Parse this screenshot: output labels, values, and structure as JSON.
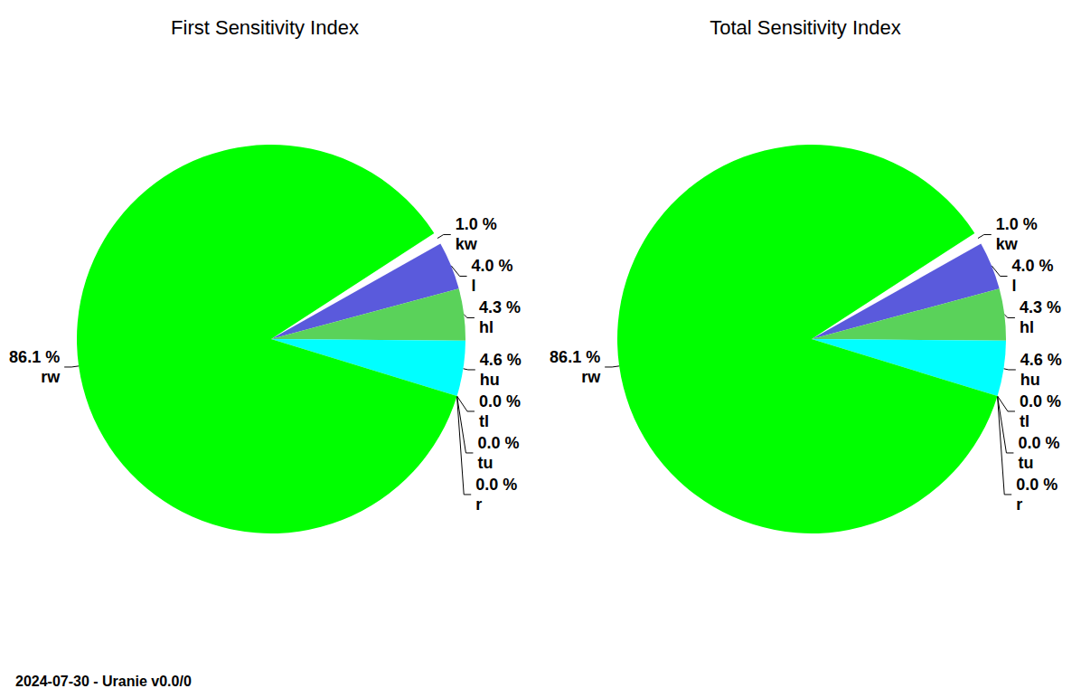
{
  "chart_data": [
    {
      "type": "pie",
      "title": "First Sensitivity Index",
      "categories": [
        "kw",
        "l",
        "hl",
        "hu",
        "tl",
        "tu",
        "r",
        "rw"
      ],
      "values": [
        1.0,
        4.0,
        4.3,
        4.6,
        0.0,
        0.0,
        0.0,
        86.1
      ],
      "value_labels": [
        "1.0 %",
        "4.0 %",
        "4.3 %",
        "4.6 %",
        "0.0 %",
        "0.0 %",
        "0.0 %",
        "86.1 %"
      ],
      "colors": [
        "#ffffff",
        "#5a5adc",
        "#5ad25a",
        "#00ffff",
        "#ffff00",
        "#ff00ff",
        "#ff0000",
        "#00ff00"
      ],
      "data_labels": true
    },
    {
      "type": "pie",
      "title": "Total Sensitivity Index",
      "categories": [
        "kw",
        "l",
        "hl",
        "hu",
        "tl",
        "tu",
        "r",
        "rw"
      ],
      "values": [
        1.0,
        4.0,
        4.3,
        4.6,
        0.0,
        0.0,
        0.0,
        86.1
      ],
      "value_labels": [
        "1.0 %",
        "4.0 %",
        "4.3 %",
        "4.6 %",
        "0.0 %",
        "0.0 %",
        "0.0 %",
        "86.1 %"
      ],
      "colors": [
        "#ffffff",
        "#5a5adc",
        "#5ad25a",
        "#00ffff",
        "#ffff00",
        "#ff00ff",
        "#ff0000",
        "#00ff00"
      ],
      "data_labels": true
    }
  ],
  "footer": "2024-07-30 - Uranie v0.0/0"
}
